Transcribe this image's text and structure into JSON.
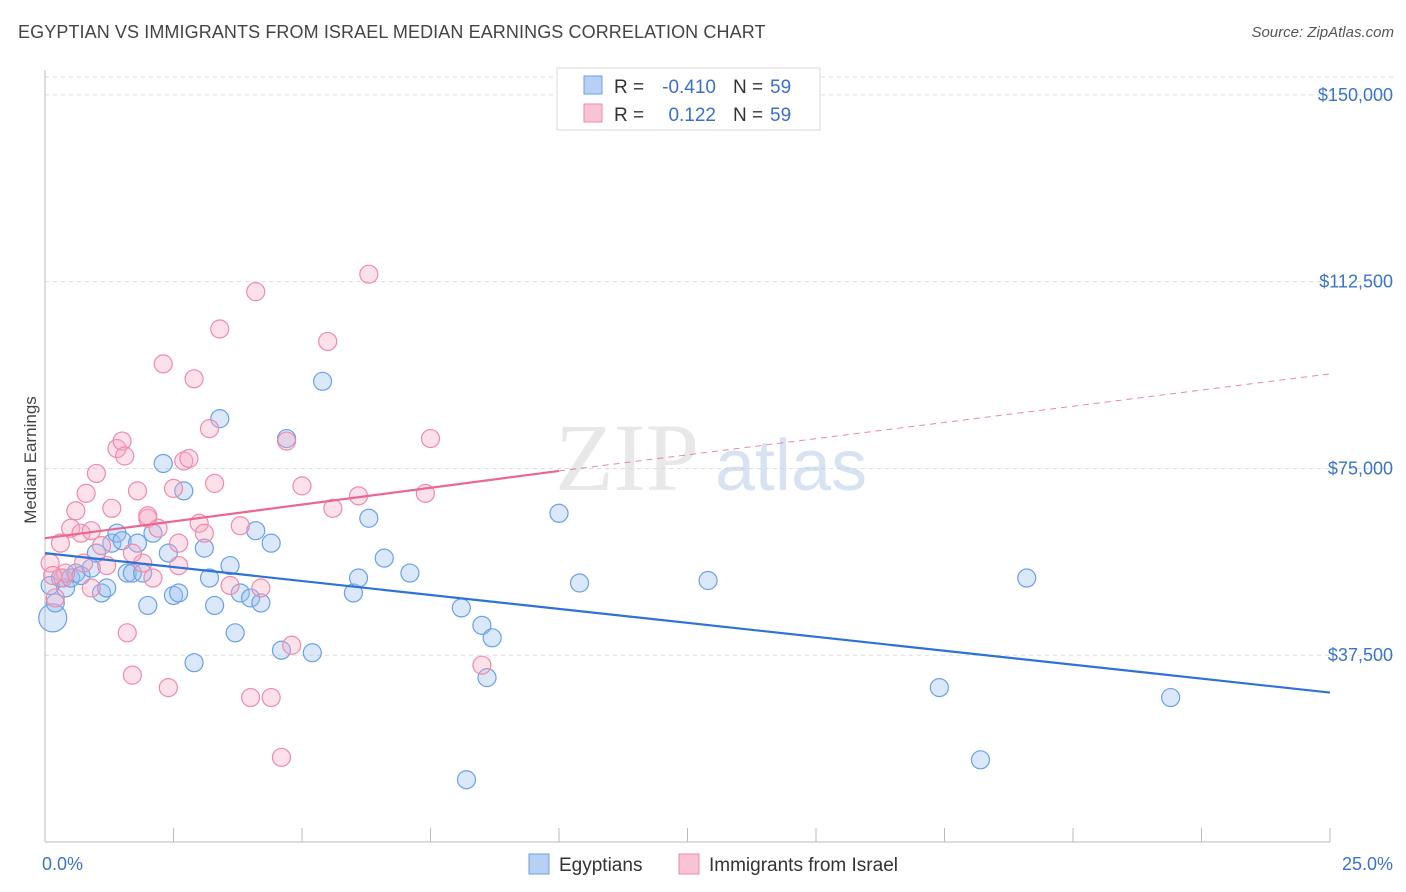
{
  "title": "EGYPTIAN VS IMMIGRANTS FROM ISRAEL MEDIAN EARNINGS CORRELATION CHART",
  "source": "Source: ZipAtlas.com",
  "watermark": {
    "zip": "ZIP",
    "atlas": "atlas"
  },
  "legend": {
    "rows": [
      {
        "r_label": "R =",
        "r_value": "-0.410",
        "n_label": "N =",
        "n_value": "59",
        "color": "#6aa0e8"
      },
      {
        "r_label": "R =",
        "r_value": "0.122",
        "n_label": "N =",
        "n_value": "59",
        "color": "#f08aa8"
      }
    ]
  },
  "chart_data": {
    "type": "scatter",
    "title": "EGYPTIAN VS IMMIGRANTS FROM ISRAEL MEDIAN EARNINGS CORRELATION CHART",
    "xlabel": "",
    "ylabel": "Median Earnings",
    "xlim": [
      0,
      25
    ],
    "ylim": [
      0,
      155000
    ],
    "x_ticks": [
      {
        "value": 0,
        "label": "0.0%"
      },
      {
        "value": 25,
        "label": "25.0%"
      }
    ],
    "y_ticks": [
      {
        "value": 37500,
        "label": "$37,500"
      },
      {
        "value": 75000,
        "label": "$75,000"
      },
      {
        "value": 112500,
        "label": "$112,500"
      },
      {
        "value": 150000,
        "label": "$150,000"
      }
    ],
    "grid": true,
    "legend_position": "top-center",
    "series": [
      {
        "name": "Egyptians",
        "color": "#6aa0e8",
        "trend_color": "#2f72d6",
        "trend": {
          "x": [
            0,
            25
          ],
          "y": [
            58000,
            30000
          ],
          "dashed_from": null
        },
        "points": [
          [
            0.15,
            45000
          ],
          [
            0.2,
            48000
          ],
          [
            0.3,
            53000
          ],
          [
            0.4,
            51000
          ],
          [
            0.5,
            53000
          ],
          [
            0.6,
            54000
          ],
          [
            0.7,
            53500
          ],
          [
            0.9,
            55000
          ],
          [
            1.0,
            58000
          ],
          [
            1.1,
            50000
          ],
          [
            1.2,
            51000
          ],
          [
            1.3,
            60000
          ],
          [
            1.4,
            62000
          ],
          [
            1.5,
            60500
          ],
          [
            1.6,
            54000
          ],
          [
            1.7,
            54000
          ],
          [
            1.8,
            60000
          ],
          [
            1.9,
            54000
          ],
          [
            2.0,
            47500
          ],
          [
            2.1,
            62000
          ],
          [
            2.3,
            76000
          ],
          [
            2.4,
            58000
          ],
          [
            2.5,
            49500
          ],
          [
            2.6,
            50000
          ],
          [
            2.7,
            70500
          ],
          [
            2.9,
            36000
          ],
          [
            3.1,
            59000
          ],
          [
            3.2,
            53000
          ],
          [
            3.3,
            47500
          ],
          [
            3.4,
            85000
          ],
          [
            3.6,
            55500
          ],
          [
            3.7,
            42000
          ],
          [
            3.8,
            50000
          ],
          [
            4.0,
            49000
          ],
          [
            4.1,
            62500
          ],
          [
            4.2,
            48000
          ],
          [
            4.4,
            60000
          ],
          [
            4.6,
            38500
          ],
          [
            4.7,
            81000
          ],
          [
            5.2,
            38000
          ],
          [
            5.4,
            92500
          ],
          [
            6.0,
            50000
          ],
          [
            6.1,
            53000
          ],
          [
            6.3,
            65000
          ],
          [
            6.6,
            57000
          ],
          [
            7.1,
            54000
          ],
          [
            8.1,
            47000
          ],
          [
            8.2,
            12500
          ],
          [
            8.5,
            43500
          ],
          [
            8.6,
            33000
          ],
          [
            8.7,
            41000
          ],
          [
            10.0,
            66000
          ],
          [
            10.4,
            52000
          ],
          [
            12.9,
            52500
          ],
          [
            17.4,
            31000
          ],
          [
            18.2,
            16500
          ],
          [
            19.1,
            53000
          ],
          [
            21.9,
            29000
          ],
          [
            0.1,
            51500
          ]
        ]
      },
      {
        "name": "Immigrants from Israel",
        "color": "#f08aa8",
        "trend_color": "#e8688f",
        "trend": {
          "x": [
            0,
            10
          ],
          "y": [
            61000,
            74500
          ],
          "dashed_to": [
            25,
            94000
          ]
        },
        "points": [
          [
            0.1,
            56000
          ],
          [
            0.2,
            49000
          ],
          [
            0.3,
            60000
          ],
          [
            0.35,
            53000
          ],
          [
            0.5,
            63000
          ],
          [
            0.6,
            66500
          ],
          [
            0.7,
            62000
          ],
          [
            0.75,
            56000
          ],
          [
            0.8,
            70000
          ],
          [
            0.9,
            62500
          ],
          [
            1.0,
            74000
          ],
          [
            1.1,
            59500
          ],
          [
            1.2,
            55500
          ],
          [
            1.3,
            67000
          ],
          [
            1.4,
            79000
          ],
          [
            1.5,
            80500
          ],
          [
            1.55,
            77500
          ],
          [
            1.6,
            42000
          ],
          [
            1.7,
            33500
          ],
          [
            1.8,
            70500
          ],
          [
            1.9,
            56000
          ],
          [
            2.0,
            65000
          ],
          [
            2.1,
            53000
          ],
          [
            2.2,
            63000
          ],
          [
            2.3,
            96000
          ],
          [
            2.4,
            31000
          ],
          [
            2.5,
            71000
          ],
          [
            2.6,
            55500
          ],
          [
            2.7,
            76500
          ],
          [
            2.8,
            77000
          ],
          [
            2.9,
            93000
          ],
          [
            3.0,
            64000
          ],
          [
            3.1,
            62000
          ],
          [
            3.2,
            83000
          ],
          [
            3.3,
            72000
          ],
          [
            3.4,
            103000
          ],
          [
            3.6,
            51500
          ],
          [
            3.8,
            63500
          ],
          [
            4.0,
            29000
          ],
          [
            4.1,
            110500
          ],
          [
            4.2,
            51000
          ],
          [
            4.4,
            29000
          ],
          [
            4.6,
            17000
          ],
          [
            4.7,
            80500
          ],
          [
            4.8,
            39500
          ],
          [
            5.0,
            71500
          ],
          [
            5.5,
            100500
          ],
          [
            5.6,
            67000
          ],
          [
            6.1,
            69500
          ],
          [
            6.3,
            114000
          ],
          [
            7.4,
            70000
          ],
          [
            7.5,
            81000
          ],
          [
            8.5,
            35500
          ],
          [
            0.4,
            54000
          ],
          [
            0.9,
            51000
          ],
          [
            1.7,
            58000
          ],
          [
            2.6,
            60000
          ],
          [
            2.0,
            65500
          ],
          [
            0.15,
            53500
          ]
        ]
      }
    ]
  }
}
